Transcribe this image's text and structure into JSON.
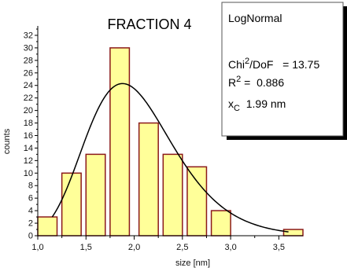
{
  "chart_data": {
    "type": "bar",
    "title": "FRACTION 4",
    "xlabel": "size [nm]",
    "ylabel": "counts",
    "xlim": [
      1.0,
      3.75
    ],
    "ylim": [
      0,
      33
    ],
    "x_ticks": [
      "1,0",
      "1,5",
      "2,0",
      "2,5",
      "3,0",
      "3,5"
    ],
    "x_tick_values": [
      1.0,
      1.5,
      2.0,
      2.5,
      3.0,
      3.5
    ],
    "y_ticks": [
      0,
      2,
      4,
      6,
      8,
      10,
      12,
      14,
      16,
      18,
      20,
      22,
      24,
      26,
      28,
      30,
      32
    ],
    "bar_width": 0.2,
    "bar_color": "#ffff99",
    "bar_edge_color": "#8b1a1a",
    "bars": [
      {
        "center": 1.1,
        "value": 3
      },
      {
        "center": 1.35,
        "value": 10
      },
      {
        "center": 1.6,
        "value": 13
      },
      {
        "center": 1.85,
        "value": 30
      },
      {
        "center": 2.15,
        "value": 18
      },
      {
        "center": 2.4,
        "value": 13
      },
      {
        "center": 2.65,
        "value": 11
      },
      {
        "center": 2.9,
        "value": 4
      },
      {
        "center": 3.65,
        "value": 1
      }
    ],
    "fit": {
      "model": "LogNormal",
      "xc": 1.99,
      "w": 0.24,
      "peak": 24.3,
      "x_start": 1.15,
      "x_end": 3.6,
      "color": "#000000"
    },
    "legend": {
      "title": "LogNormal",
      "chi_label": "Chi",
      "chi_sup": "2",
      "chi_rest": "/DoF   = 13.75",
      "r_label": "R",
      "r_sup": "2",
      "r_rest": " =  0.886",
      "xc_label": "x",
      "xc_sub": "C",
      "xc_rest": "  1.99 nm"
    },
    "grid": false
  }
}
